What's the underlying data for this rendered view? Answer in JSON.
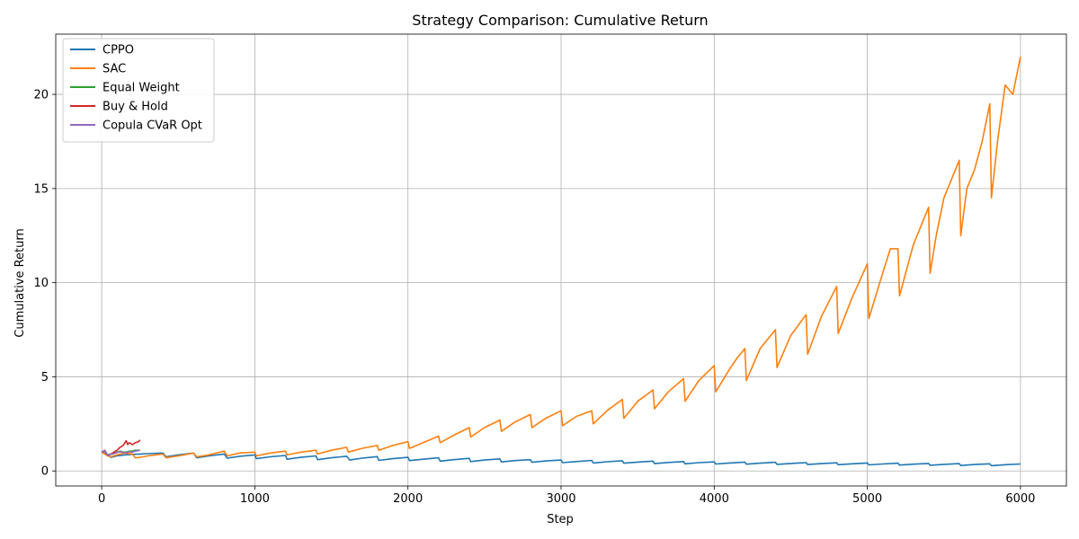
{
  "chart_data": {
    "type": "line",
    "title": "Strategy Comparison: Cumulative Return",
    "xlabel": "Step",
    "ylabel": "Cumulative Return",
    "xlim": [
      -300,
      6300
    ],
    "ylim": [
      -0.8,
      23.2
    ],
    "xticks": [
      0,
      1000,
      2000,
      3000,
      4000,
      5000,
      6000
    ],
    "xtick_labels": [
      "0",
      "1000",
      "2000",
      "3000",
      "4000",
      "5000",
      "6000"
    ],
    "yticks": [
      0,
      5,
      10,
      15,
      20
    ],
    "ytick_labels": [
      "0",
      "5",
      "10",
      "15",
      "20"
    ],
    "grid": true,
    "legend_position": "top-left",
    "series": [
      {
        "name": "CPPO",
        "color": "#1f77b4",
        "x": [
          0,
          30,
          60,
          100,
          150,
          200,
          250,
          300,
          400,
          420,
          500,
          600,
          620,
          700,
          800,
          820,
          900,
          1000,
          1010,
          1100,
          1200,
          1210,
          1300,
          1400,
          1410,
          1500,
          1600,
          1620,
          1700,
          1800,
          1810,
          1900,
          2000,
          2010,
          2100,
          2200,
          2210,
          2300,
          2400,
          2410,
          2500,
          2600,
          2610,
          2700,
          2800,
          2810,
          2900,
          3000,
          3010,
          3100,
          3200,
          3210,
          3300,
          3400,
          3410,
          3500,
          3600,
          3610,
          3700,
          3800,
          3810,
          3900,
          4000,
          4010,
          4100,
          4200,
          4210,
          4300,
          4400,
          4410,
          4500,
          4600,
          4610,
          4700,
          4800,
          4810,
          4900,
          5000,
          5010,
          5100,
          5200,
          5210,
          5300,
          5400,
          5410,
          5500,
          5600,
          5610,
          5700,
          5800,
          5810,
          5900,
          6000
        ],
        "y": [
          1.0,
          0.9,
          0.72,
          0.8,
          0.85,
          0.88,
          0.9,
          0.92,
          0.95,
          0.75,
          0.85,
          0.95,
          0.7,
          0.8,
          0.9,
          0.68,
          0.78,
          0.85,
          0.65,
          0.75,
          0.82,
          0.62,
          0.72,
          0.8,
          0.6,
          0.7,
          0.78,
          0.58,
          0.68,
          0.76,
          0.56,
          0.65,
          0.72,
          0.55,
          0.62,
          0.7,
          0.52,
          0.6,
          0.67,
          0.5,
          0.58,
          0.64,
          0.48,
          0.55,
          0.6,
          0.46,
          0.53,
          0.58,
          0.44,
          0.5,
          0.56,
          0.42,
          0.49,
          0.54,
          0.41,
          0.47,
          0.52,
          0.39,
          0.45,
          0.5,
          0.38,
          0.44,
          0.48,
          0.37,
          0.42,
          0.47,
          0.36,
          0.41,
          0.46,
          0.35,
          0.4,
          0.44,
          0.34,
          0.39,
          0.43,
          0.33,
          0.38,
          0.42,
          0.32,
          0.37,
          0.41,
          0.31,
          0.36,
          0.4,
          0.3,
          0.35,
          0.39,
          0.29,
          0.34,
          0.38,
          0.28,
          0.33,
          0.37
        ]
      },
      {
        "name": "SAC",
        "color": "#ff7f0e",
        "x": [
          0,
          30,
          60,
          100,
          150,
          200,
          220,
          250,
          300,
          400,
          420,
          500,
          600,
          620,
          700,
          800,
          820,
          900,
          1000,
          1010,
          1100,
          1200,
          1210,
          1300,
          1400,
          1410,
          1500,
          1600,
          1610,
          1700,
          1800,
          1810,
          1900,
          2000,
          2010,
          2100,
          2200,
          2210,
          2300,
          2400,
          2410,
          2500,
          2600,
          2610,
          2700,
          2800,
          2810,
          2900,
          3000,
          3010,
          3100,
          3200,
          3210,
          3300,
          3400,
          3410,
          3500,
          3600,
          3610,
          3700,
          3800,
          3810,
          3900,
          4000,
          4010,
          4100,
          4150,
          4200,
          4210,
          4300,
          4400,
          4410,
          4500,
          4600,
          4610,
          4700,
          4800,
          4810,
          4900,
          5000,
          5010,
          5100,
          5150,
          5200,
          5210,
          5300,
          5400,
          5410,
          5450,
          5500,
          5550,
          5600,
          5610,
          5650,
          5700,
          5750,
          5800,
          5810,
          5850,
          5900,
          5950,
          6000
        ],
        "y": [
          1.0,
          0.85,
          0.75,
          0.85,
          0.95,
          0.9,
          0.7,
          0.72,
          0.8,
          0.9,
          0.7,
          0.8,
          0.95,
          0.75,
          0.85,
          1.05,
          0.8,
          0.95,
          1.0,
          0.8,
          0.95,
          1.05,
          0.85,
          1.0,
          1.1,
          0.9,
          1.1,
          1.25,
          1.0,
          1.2,
          1.35,
          1.1,
          1.35,
          1.55,
          1.2,
          1.5,
          1.85,
          1.5,
          1.9,
          2.3,
          1.8,
          2.3,
          2.7,
          2.1,
          2.6,
          3.0,
          2.3,
          2.8,
          3.2,
          2.4,
          2.9,
          3.2,
          2.5,
          3.2,
          3.8,
          2.8,
          3.7,
          4.3,
          3.3,
          4.2,
          4.9,
          3.7,
          4.8,
          5.6,
          4.2,
          5.4,
          6.0,
          6.5,
          4.8,
          6.5,
          7.5,
          5.5,
          7.2,
          8.3,
          6.2,
          8.2,
          9.8,
          7.3,
          9.2,
          11.0,
          8.1,
          10.5,
          11.8,
          11.8,
          9.3,
          12.0,
          14.0,
          10.5,
          12.5,
          14.5,
          15.5,
          16.5,
          12.5,
          15.0,
          16.0,
          17.5,
          19.5,
          14.5,
          17.5,
          20.5,
          20.0,
          22.0
        ]
      },
      {
        "name": "Equal Weight",
        "color": "#2ca02c",
        "x": [
          0,
          20,
          40,
          60,
          80,
          100,
          120,
          140,
          160,
          180,
          200,
          220,
          250
        ],
        "y": [
          1.0,
          1.05,
          0.85,
          0.9,
          0.95,
          1.0,
          1.05,
          1.0,
          1.0,
          1.05,
          1.05,
          1.1,
          1.1
        ]
      },
      {
        "name": "Buy & Hold",
        "color": "#d62728",
        "x": [
          0,
          20,
          40,
          60,
          80,
          100,
          120,
          140,
          160,
          170,
          180,
          200,
          220,
          240,
          250
        ],
        "y": [
          1.0,
          1.1,
          0.8,
          0.9,
          1.0,
          1.1,
          1.25,
          1.35,
          1.6,
          1.4,
          1.5,
          1.4,
          1.5,
          1.55,
          1.65
        ]
      },
      {
        "name": "Copula CVaR Opt",
        "color": "#9467bd",
        "x": [
          0,
          20,
          40,
          60,
          80,
          100,
          120,
          140,
          160,
          180,
          200,
          220,
          250
        ],
        "y": [
          1.0,
          1.08,
          0.82,
          0.88,
          0.92,
          0.98,
          1.02,
          0.98,
          0.97,
          1.02,
          1.0,
          1.05,
          1.1
        ]
      }
    ]
  }
}
